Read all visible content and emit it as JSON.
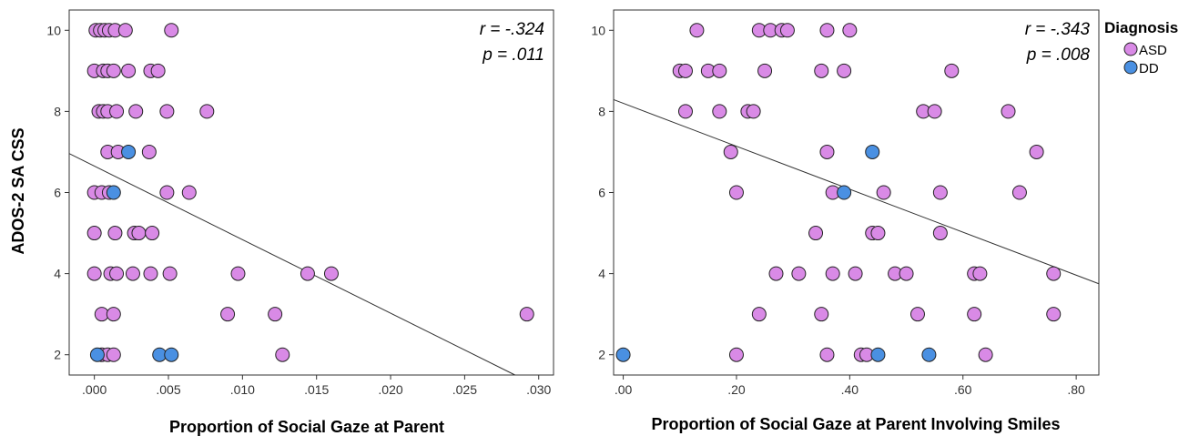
{
  "shared": {
    "ylabel": "ADOS-2 SA CSS"
  },
  "colors": {
    "ASD": "#d98ae6",
    "DD": "#4a90e2",
    "point_stroke": "#222222",
    "fit_line": "#333333",
    "frame": "#333333"
  },
  "legend": {
    "title": "Diagnosis",
    "items": [
      {
        "label": "ASD",
        "color": "#d98ae6"
      },
      {
        "label": "DD",
        "color": "#4a90e2"
      }
    ]
  },
  "chart_data": [
    {
      "type": "scatter",
      "xlabel": "Proportion of Social Gaze at Parent",
      "ylabel": "ADOS-2 SA CSS",
      "xlim": [
        -0.0017,
        0.031
      ],
      "ylim": [
        1.5,
        10.5
      ],
      "xticks": [
        0,
        0.005,
        0.01,
        0.015,
        0.02,
        0.025,
        0.03
      ],
      "xtick_labels": [
        ".000",
        ".005",
        ".010",
        ".015",
        ".020",
        ".025",
        ".030"
      ],
      "yticks": [
        2,
        4,
        6,
        8,
        10
      ],
      "ytick_labels": [
        "2",
        "4",
        "6",
        "8",
        "10"
      ],
      "r_text": "r = -.324",
      "p_text": "p = .011",
      "fit_line": {
        "x": [
          -0.0017,
          0.0284
        ],
        "y": [
          6.96,
          1.5
        ]
      },
      "series": [
        {
          "name": "ASD",
          "points": [
            [
              0.0001,
              10
            ],
            [
              0.0004,
              10
            ],
            [
              0.0007,
              10
            ],
            [
              0.001,
              10
            ],
            [
              0.0014,
              10
            ],
            [
              0.0021,
              10
            ],
            [
              0.0052,
              10
            ],
            [
              0.0,
              9
            ],
            [
              0.0006,
              9
            ],
            [
              0.0009,
              9
            ],
            [
              0.0013,
              9
            ],
            [
              0.0023,
              9
            ],
            [
              0.0038,
              9
            ],
            [
              0.0043,
              9
            ],
            [
              0.0003,
              8
            ],
            [
              0.0006,
              8
            ],
            [
              0.0009,
              8
            ],
            [
              0.0015,
              8
            ],
            [
              0.0028,
              8
            ],
            [
              0.0049,
              8
            ],
            [
              0.0076,
              8
            ],
            [
              0.0009,
              7
            ],
            [
              0.0016,
              7
            ],
            [
              0.0037,
              7
            ],
            [
              0.0,
              6
            ],
            [
              0.0005,
              6
            ],
            [
              0.001,
              6
            ],
            [
              0.0049,
              6
            ],
            [
              0.0064,
              6
            ],
            [
              0.0,
              5
            ],
            [
              0.0014,
              5
            ],
            [
              0.0027,
              5
            ],
            [
              0.003,
              5
            ],
            [
              0.0039,
              5
            ],
            [
              0.0,
              4
            ],
            [
              0.0011,
              4
            ],
            [
              0.0015,
              4
            ],
            [
              0.0026,
              4
            ],
            [
              0.0038,
              4
            ],
            [
              0.0051,
              4
            ],
            [
              0.0097,
              4
            ],
            [
              0.0144,
              4
            ],
            [
              0.016,
              4
            ],
            [
              0.0005,
              3
            ],
            [
              0.0013,
              3
            ],
            [
              0.009,
              3
            ],
            [
              0.0122,
              3
            ],
            [
              0.0292,
              3
            ],
            [
              0.0005,
              2
            ],
            [
              0.0009,
              2
            ],
            [
              0.0013,
              2
            ],
            [
              0.0127,
              2
            ]
          ]
        },
        {
          "name": "DD",
          "points": [
            [
              0.0023,
              7
            ],
            [
              0.0013,
              6
            ],
            [
              0.0002,
              2
            ],
            [
              0.0044,
              2
            ],
            [
              0.0052,
              2
            ]
          ]
        }
      ]
    },
    {
      "type": "scatter",
      "xlabel": "Proportion of Social Gaze at Parent Involving Smiles",
      "ylabel": "",
      "xlim": [
        -0.017,
        0.84
      ],
      "ylim": [
        1.5,
        10.5
      ],
      "xticks": [
        0,
        0.2,
        0.4,
        0.6,
        0.8
      ],
      "xtick_labels": [
        ".00",
        ".20",
        ".40",
        ".60",
        ".80"
      ],
      "yticks": [
        2,
        4,
        6,
        8,
        10
      ],
      "ytick_labels": [
        "2",
        "4",
        "6",
        "8",
        "10"
      ],
      "r_text": "r = -.343",
      "p_text": "p = .008",
      "fit_line": {
        "x": [
          -0.017,
          0.84
        ],
        "y": [
          8.29,
          3.75
        ]
      },
      "series": [
        {
          "name": "ASD",
          "points": [
            [
              0.13,
              10
            ],
            [
              0.24,
              10
            ],
            [
              0.26,
              10
            ],
            [
              0.28,
              10
            ],
            [
              0.29,
              10
            ],
            [
              0.36,
              10
            ],
            [
              0.4,
              10
            ],
            [
              0.1,
              9
            ],
            [
              0.11,
              9
            ],
            [
              0.15,
              9
            ],
            [
              0.17,
              9
            ],
            [
              0.25,
              9
            ],
            [
              0.35,
              9
            ],
            [
              0.39,
              9
            ],
            [
              0.58,
              9
            ],
            [
              0.11,
              8
            ],
            [
              0.17,
              8
            ],
            [
              0.22,
              8
            ],
            [
              0.23,
              8
            ],
            [
              0.53,
              8
            ],
            [
              0.55,
              8
            ],
            [
              0.68,
              8
            ],
            [
              0.19,
              7
            ],
            [
              0.36,
              7
            ],
            [
              0.73,
              7
            ],
            [
              0.2,
              6
            ],
            [
              0.37,
              6
            ],
            [
              0.46,
              6
            ],
            [
              0.56,
              6
            ],
            [
              0.7,
              6
            ],
            [
              0.34,
              5
            ],
            [
              0.44,
              5
            ],
            [
              0.45,
              5
            ],
            [
              0.56,
              5
            ],
            [
              0.27,
              4
            ],
            [
              0.31,
              4
            ],
            [
              0.37,
              4
            ],
            [
              0.41,
              4
            ],
            [
              0.48,
              4
            ],
            [
              0.5,
              4
            ],
            [
              0.62,
              4
            ],
            [
              0.63,
              4
            ],
            [
              0.76,
              4
            ],
            [
              0.24,
              3
            ],
            [
              0.35,
              3
            ],
            [
              0.52,
              3
            ],
            [
              0.62,
              3
            ],
            [
              0.76,
              3
            ],
            [
              0.2,
              2
            ],
            [
              0.36,
              2
            ],
            [
              0.42,
              2
            ],
            [
              0.43,
              2
            ],
            [
              0.64,
              2
            ]
          ]
        },
        {
          "name": "DD",
          "points": [
            [
              0.44,
              7
            ],
            [
              0.39,
              6
            ],
            [
              0.0,
              2
            ],
            [
              0.45,
              2
            ],
            [
              0.54,
              2
            ]
          ]
        }
      ]
    }
  ]
}
